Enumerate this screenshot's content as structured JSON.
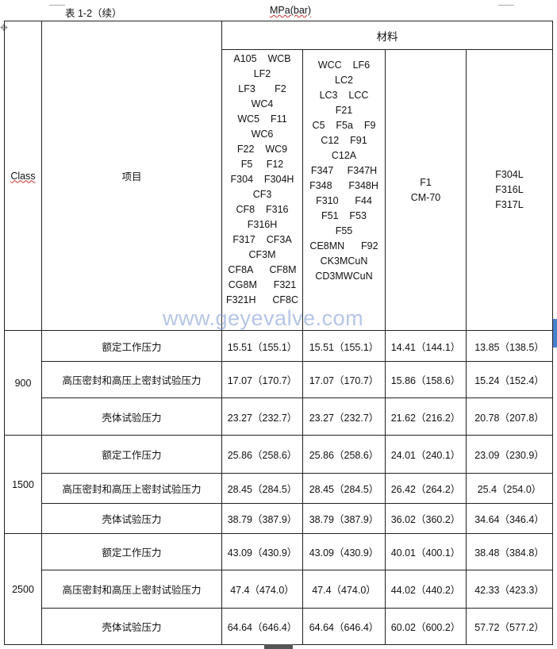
{
  "caption": {
    "table_label": "表 1-2（续）",
    "unit": "MPa(bar)"
  },
  "header": {
    "class": "Class",
    "item": "项目",
    "materials": "材料"
  },
  "material_columns": [
    [
      "A105    WCB",
      "LF2",
      "LF3       F2",
      "WC4",
      "WC5    F11",
      "WC6",
      "F22    WC9",
      "F5     F12",
      "F304    F304H",
      "CF3",
      "CF8    F316",
      "F316H",
      "F317    CF3A",
      "CF3M",
      "CF8A      CF8M",
      "CG8M      F321",
      "F321H      CF8C"
    ],
    [
      "WCC    LF6",
      "LC2",
      "LC3    LCC",
      "F21",
      "C5    F5a    F9",
      "C12    F91",
      "C12A",
      "F347     F347H",
      "F348      F348H",
      "F310      F44",
      "F51    F53",
      "F55",
      "CE8MN      F92",
      "CK3MCuN",
      "CD3MWCuN"
    ],
    [
      "F1",
      "CM-70"
    ],
    [
      "F304L",
      "F316L",
      "F317L"
    ]
  ],
  "groups": [
    {
      "class": "900",
      "rows": [
        {
          "item": "额定工作压力",
          "values": [
            "15.51（155.1）",
            "15.51（155.1）",
            "14.41（144.1）",
            "13.85（138.5）"
          ]
        },
        {
          "item": "高压密封和高压上密封试验压力",
          "values": [
            "17.07（170.7）",
            "17.07（170.7）",
            "15.86（158.6）",
            "15.24（152.4）"
          ]
        },
        {
          "item": "壳体试验压力",
          "values": [
            "23.27（232.7）",
            "23.27（232.7）",
            "21.62（216.2）",
            "20.78（207.8）"
          ]
        }
      ]
    },
    {
      "class": "1500",
      "rows": [
        {
          "item": "额定工作压力",
          "values": [
            "25.86（258.6）",
            "25.86（258.6）",
            "24.01（240.1）",
            "23.09（230.9）"
          ]
        },
        {
          "item": "高压密封和高压上密封试验压力",
          "values": [
            "28.45（284.5）",
            "28.45（284.5）",
            "26.42（264.2）",
            "25.4（254.0）"
          ]
        },
        {
          "item": "壳体试验压力",
          "values": [
            "38.79（387.9）",
            "38.79（387.9）",
            "36.02（360.2）",
            "34.64（346.4）"
          ]
        }
      ]
    },
    {
      "class": "2500",
      "rows": [
        {
          "item": "额定工作压力",
          "values": [
            "43.09（430.9）",
            "43.09（430.9）",
            "40.01（400.1）",
            "38.48（384.8）"
          ]
        },
        {
          "item": "高压密封和高压上密封试验压力",
          "values": [
            "47.4（474.0）",
            "47.4（474.0）",
            "44.02（440.2）",
            "42.33（423.3）"
          ]
        },
        {
          "item": "壳体试验压力",
          "values": [
            "64.64（646.4）",
            "64.64（646.4）",
            "60.02（600.2）",
            "57.72（577.2）"
          ]
        }
      ]
    }
  ],
  "watermark": "www.geyevalve.com"
}
